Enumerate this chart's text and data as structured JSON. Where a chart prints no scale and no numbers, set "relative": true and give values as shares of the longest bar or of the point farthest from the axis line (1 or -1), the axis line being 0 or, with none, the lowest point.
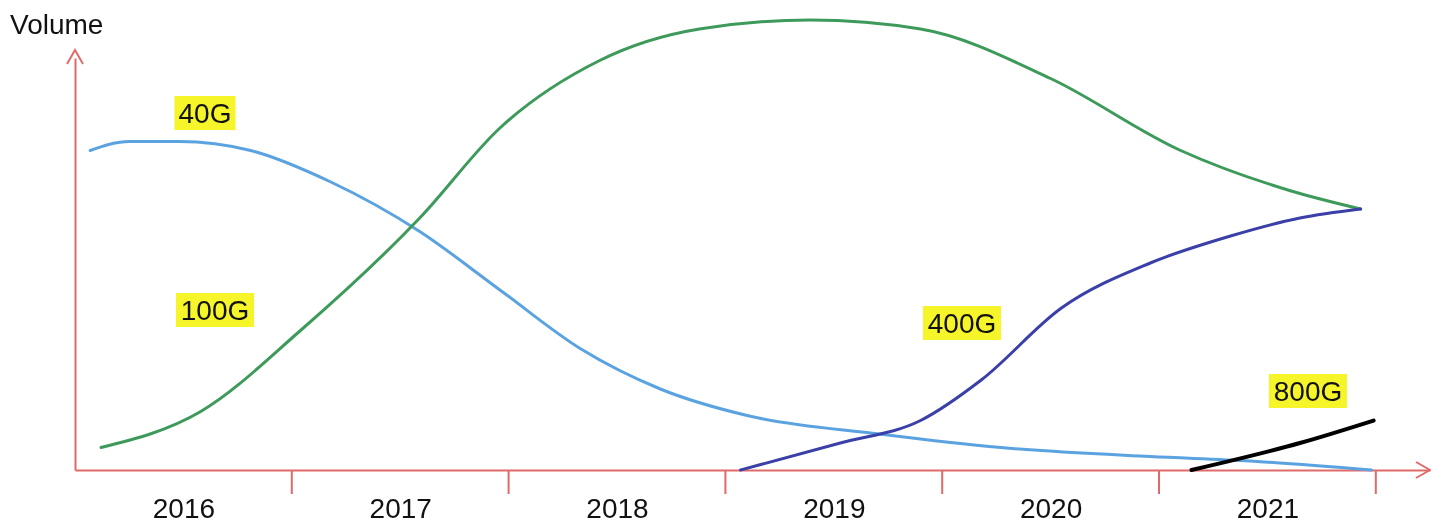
{
  "chart_data": {
    "type": "line",
    "relative": true,
    "ylabel": "Volume",
    "legend": false,
    "xlim": [
      2016,
      2022.25
    ],
    "xticks": [
      {
        "value": 2016.5,
        "label": "2016"
      },
      {
        "value": 2017.5,
        "label": "2017"
      },
      {
        "value": 2018.5,
        "label": "2018"
      },
      {
        "value": 2019.5,
        "label": "2019"
      },
      {
        "value": 2020.5,
        "label": "2020"
      },
      {
        "value": 2021.5,
        "label": "2021"
      }
    ],
    "series": [
      {
        "name": "40G",
        "color": "#5ba3e0",
        "x": [
          2016.07,
          2016.25,
          2016.48,
          2016.81,
          2017.18,
          2017.59,
          2017.96,
          2018.33,
          2018.7,
          2019.11,
          2019.71,
          2020.27,
          2020.96,
          2021.42,
          2021.98
        ],
        "values": [
          0.71,
          0.73,
          0.73,
          0.71,
          0.64,
          0.53,
          0.4,
          0.27,
          0.18,
          0.12,
          0.08,
          0.05,
          0.03,
          0.02,
          0
        ]
      },
      {
        "name": "100G",
        "color": "#3d9a5a",
        "x": [
          2016.12,
          2016.58,
          2017.04,
          2017.59,
          2017.96,
          2018.42,
          2018.88,
          2019.39,
          2019.9,
          2020.5,
          2021.1,
          2021.61,
          2021.93
        ],
        "values": [
          0.05,
          0.13,
          0.31,
          0.56,
          0.76,
          0.91,
          0.98,
          1,
          0.98,
          0.87,
          0.71,
          0.62,
          0.58
        ]
      },
      {
        "name": "400G",
        "color": "#3b3fa8",
        "x": [
          2019.07,
          2019.53,
          2019.9,
          2020.18,
          2020.55,
          2020.96,
          2021.33,
          2021.65,
          2021.93
        ],
        "values": [
          0,
          0.06,
          0.11,
          0.2,
          0.36,
          0.46,
          0.52,
          0.56,
          0.58
        ]
      },
      {
        "name": "800G",
        "color": "#000000",
        "x": [
          2021.15,
          2021.65,
          2021.99
        ],
        "values": [
          0,
          0.06,
          0.11
        ]
      }
    ]
  }
}
